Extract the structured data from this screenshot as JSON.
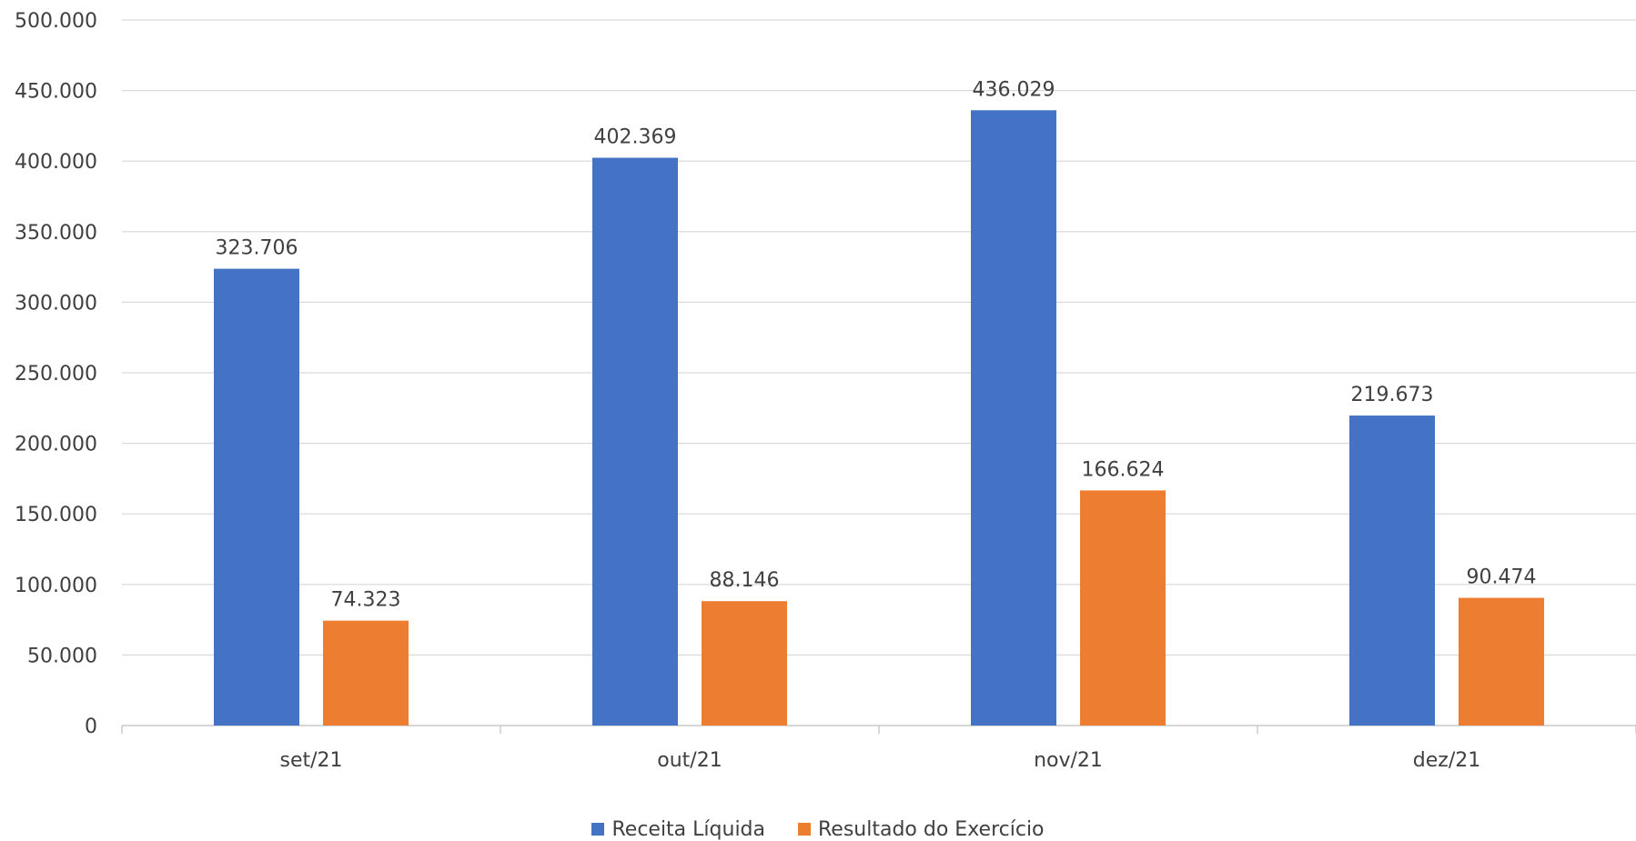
{
  "chart_data": {
    "type": "bar",
    "categories": [
      "set/21",
      "out/21",
      "nov/21",
      "dez/21"
    ],
    "series": [
      {
        "name": "Receita Líquida",
        "color": "#4472C4",
        "values": [
          323706,
          402369,
          436029,
          219673
        ],
        "labels": [
          "323.706",
          "402.369",
          "436.029",
          "219.673"
        ]
      },
      {
        "name": "Resultado do Exercício",
        "color": "#ED7D31",
        "values": [
          74323,
          88146,
          166624,
          90474
        ],
        "labels": [
          "74.323",
          "88.146",
          "166.624",
          "90.474"
        ]
      }
    ],
    "ylim": [
      0,
      500000
    ],
    "yticks": [
      0,
      50000,
      100000,
      150000,
      200000,
      250000,
      300000,
      350000,
      400000,
      450000,
      500000
    ],
    "ytick_labels": [
      "0",
      "50.000",
      "100.000",
      "150.000",
      "200.000",
      "250.000",
      "300.000",
      "350.000",
      "400.000",
      "450.000",
      "500.000"
    ],
    "grid": true,
    "legend_position": "bottom",
    "title": "",
    "xlabel": "",
    "ylabel": ""
  }
}
